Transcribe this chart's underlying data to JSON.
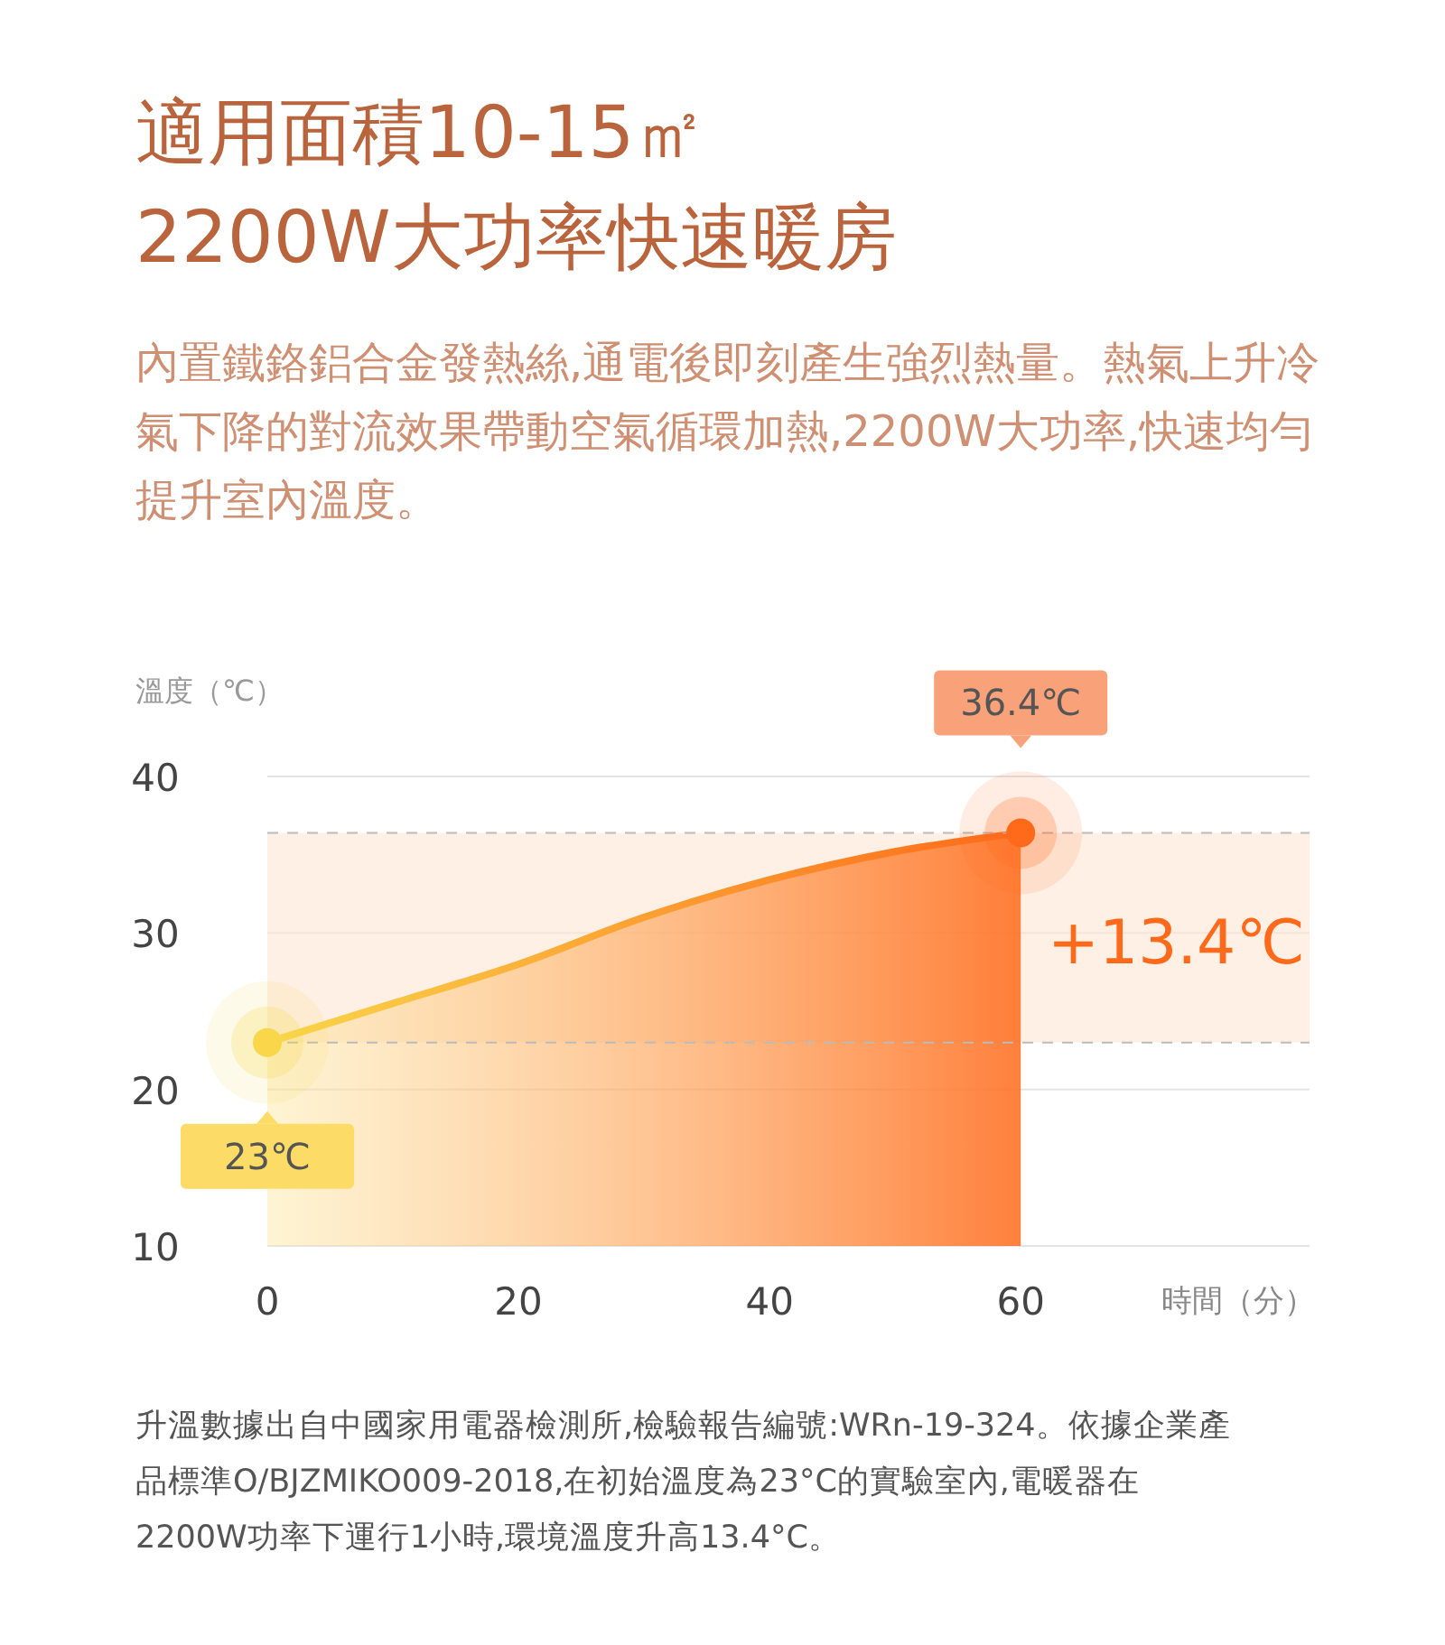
{
  "chart_data": {
    "type": "area",
    "title": "適用面積10-15㎡\n2200W大功率快速暖房",
    "subtitle": "內置鐵鉻鋁合金發熱絲,通電後即刻產生強烈熱量。熱氣上升冷氣下降的對流效果帶動空氣循環加熱,2200W大功率,快速均勻提升室內溫度。",
    "ylabel": "溫度（℃）",
    "xlabel": "時間（分）",
    "x": [
      0,
      10,
      20,
      30,
      40,
      50,
      60
    ],
    "series": [
      {
        "color": "#ff6a1a",
        "values": [
          23,
          25.5,
          28.0,
          31.0,
          33.4,
          35.2,
          36.4
        ]
      }
    ],
    "xlim": [
      0,
      83
    ],
    "xticks": [
      0,
      20,
      40,
      60
    ],
    "ylim": [
      10,
      40
    ],
    "yticks": [
      10,
      20,
      30,
      40
    ],
    "grid": "y",
    "marker": "none",
    "line_style": "solid",
    "ref_lines": [
      {
        "axis": "y",
        "value": 23,
        "color": "#bbbbbb",
        "line_style": "dashed"
      },
      {
        "axis": "y",
        "value": 36.4,
        "color": "#bbbbbb",
        "line_style": "dashed"
      }
    ],
    "bands": [
      {
        "axis": "y",
        "from": 23,
        "to": 36.4,
        "label": "+13.4℃",
        "color": "#fde6d4"
      }
    ],
    "annotations": [
      {
        "text": "23℃",
        "x": 0,
        "y": 23
      },
      {
        "text": "36.4℃",
        "x": 60,
        "y": 36.4
      },
      "升溫數據出自中國家用電器檢測所,檢驗報告編號:WRn-19-324。依據企業產品標準O/BJZMIKO009-2018,在初始溫度為23°C的實驗室內,電暖器在2200W功率下運行1小時,環境溫度升高13.4°C。"
    ]
  }
}
